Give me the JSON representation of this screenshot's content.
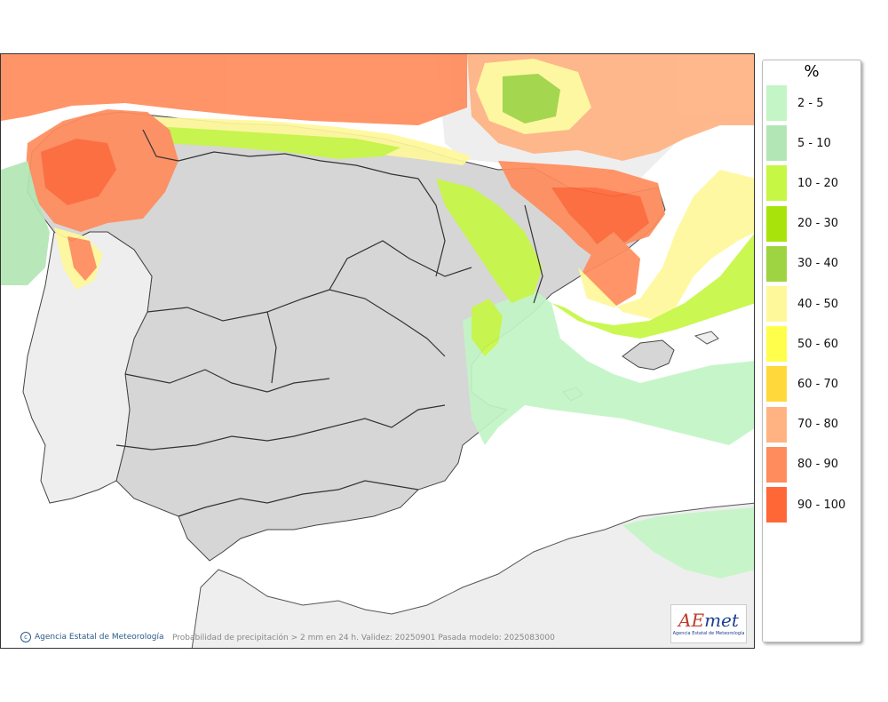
{
  "legend": {
    "unit": "%",
    "items": [
      {
        "label": "2 - 5",
        "color": "#c3f5c6"
      },
      {
        "label": "5 - 10",
        "color": "#b2e7b5"
      },
      {
        "label": "10 - 20",
        "color": "#c6f744"
      },
      {
        "label": "20 - 30",
        "color": "#a8e40c"
      },
      {
        "label": "30 - 40",
        "color": "#9ed442"
      },
      {
        "label": "40 - 50",
        "color": "#fff89b"
      },
      {
        "label": "50 - 60",
        "color": "#ffff4b"
      },
      {
        "label": "60 - 70",
        "color": "#ffd83c"
      },
      {
        "label": "70 - 80",
        "color": "#ffb383"
      },
      {
        "label": "80 - 90",
        "color": "#ff8c5c"
      },
      {
        "label": "90 - 100",
        "color": "#ff6737"
      }
    ]
  },
  "footer": {
    "credit": "Agencia Estatal de Meteorología",
    "caption": "Probabilidad de precipitación > 2 mm en 24 h. Validez: 20250901 Pasada modelo: 2025083000"
  },
  "logo": {
    "name_a": "AE",
    "name_b": "met",
    "subtitle": "Agencia Estatal de Meteorología"
  },
  "colors": {
    "land": "#d6d6d6",
    "sea": "#ffffff",
    "border": "#333333"
  }
}
